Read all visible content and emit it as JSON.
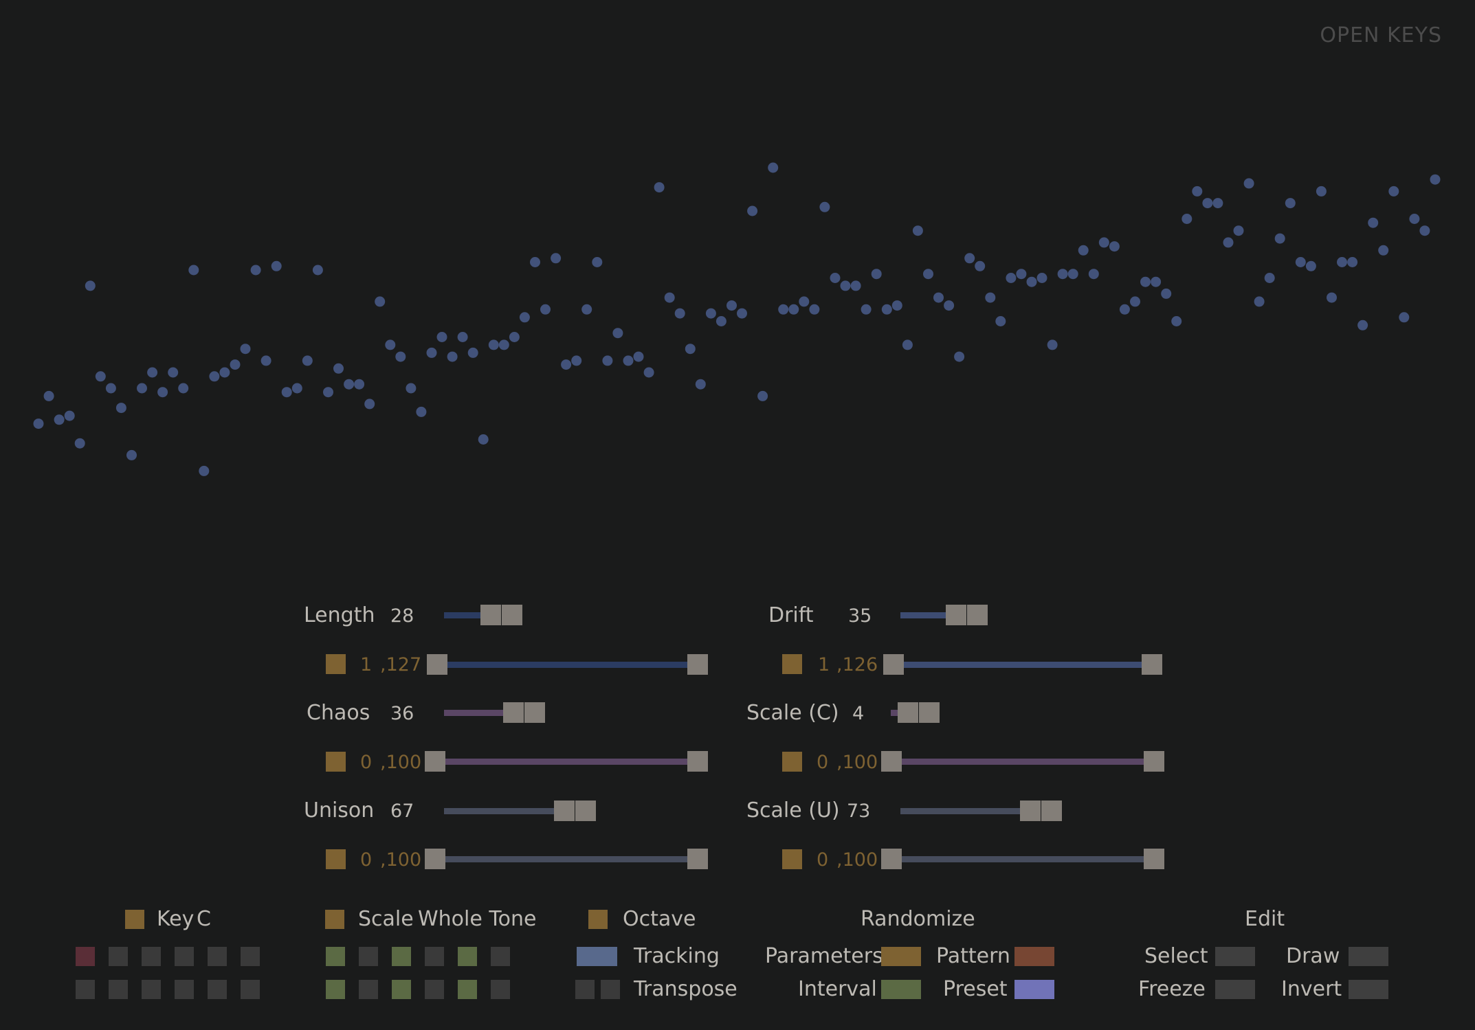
{
  "brand": "OPEN KEYS",
  "colors": {
    "background": "#1a1b1b",
    "dot": "#42527a",
    "accent": "#7e6232",
    "thumb": "#837e78",
    "length_bar": "#2b3c62",
    "drift_bar": "#3d4c72",
    "chaos_bar": "#5a4665",
    "unison_bar": "#464c5c"
  },
  "sequence": {
    "values": [
      32,
      39,
      33,
      34,
      27,
      67,
      44,
      41,
      36,
      24,
      41,
      45,
      40,
      45,
      41,
      71,
      20,
      44,
      45,
      47,
      51,
      71,
      48,
      72,
      40,
      41,
      48,
      71,
      40,
      46,
      42,
      42,
      37,
      63,
      52,
      49,
      41,
      35,
      50,
      54,
      49,
      54,
      50,
      28,
      52,
      52,
      54,
      59,
      73,
      61,
      74,
      47,
      48,
      61,
      73,
      48,
      55,
      48,
      49,
      45,
      92,
      64,
      60,
      51,
      42,
      60,
      58,
      62,
      60,
      86,
      39,
      97,
      61,
      61,
      63,
      61,
      87,
      69,
      67,
      67,
      61,
      70,
      61,
      62,
      52,
      81,
      70,
      64,
      62,
      49,
      74,
      72,
      64,
      58,
      69,
      70,
      68,
      69,
      52,
      70,
      70,
      76,
      70,
      78,
      77,
      61,
      63,
      68,
      68,
      65,
      58,
      84,
      91,
      88,
      88,
      78,
      81,
      93,
      63,
      69,
      79,
      88,
      73,
      72,
      91,
      64,
      73,
      73,
      57,
      83,
      76,
      91,
      59,
      84,
      81,
      94
    ],
    "ymin": 0,
    "ymax": 127
  },
  "params": {
    "length": {
      "label": "Length",
      "value": "28",
      "value_num": 28,
      "max": 127,
      "range_min": "1",
      "range_max": ",127",
      "range_min_num": 1,
      "range_max_num": 127
    },
    "drift": {
      "label": "Drift",
      "value": "35",
      "value_num": 35,
      "max": 127,
      "range_min": "1",
      "range_max": ",126",
      "range_min_num": 1,
      "range_max_num": 126
    },
    "chaos": {
      "label": "Chaos",
      "value": "36",
      "value_num": 36,
      "max": 100,
      "range_min": "0",
      "range_max": ",100",
      "range_min_num": 0,
      "range_max_num": 100
    },
    "scale_c": {
      "label": "Scale (C)",
      "value": "4",
      "value_num": 4,
      "max": 100,
      "range_min": "0",
      "range_max": ",100",
      "range_min_num": 0,
      "range_max_num": 100
    },
    "unison": {
      "label": "Unison",
      "value": "67",
      "value_num": 67,
      "max": 100,
      "range_min": "0",
      "range_max": ",100",
      "range_min_num": 0,
      "range_max_num": 100
    },
    "scale_u": {
      "label": "Scale (U)",
      "value": "73",
      "value_num": 73,
      "max": 100,
      "range_min": "0",
      "range_max": ",100",
      "range_min_num": 0,
      "range_max_num": 100
    }
  },
  "bottom": {
    "key": {
      "label": "Key",
      "value": "C"
    },
    "scale": {
      "label": "Scale",
      "value": "Whole Tone"
    },
    "octave": {
      "label": "Octave"
    },
    "randomize": {
      "label": "Randomize"
    },
    "edit": {
      "label": "Edit"
    },
    "tracking": "Tracking",
    "transpose": "Transpose",
    "parameters": "Parameters",
    "interval": "Interval",
    "pattern": "Pattern",
    "preset": "Preset",
    "select": "Select",
    "freeze": "Freeze",
    "draw": "Draw",
    "invert": "Invert",
    "key_grid": [
      [
        "#5a2e37",
        "#3a3a3a",
        "#3a3a3a",
        "#3a3a3a",
        "#3a3a3a",
        "#3a3a3a"
      ],
      [
        "#3a3a3a",
        "#3a3a3a",
        "#3a3a3a",
        "#3a3a3a",
        "#3a3a3a",
        "#3a3a3a"
      ]
    ],
    "scale_grid": [
      [
        "#5b6a44",
        "#3a3a3a",
        "#5b6a44",
        "#3a3a3a",
        "#5b6a44",
        "#3a3a3a"
      ],
      [
        "#5b6a44",
        "#3a3a3a",
        "#5b6a44",
        "#3a3a3a",
        "#5b6a44",
        "#3a3a3a"
      ]
    ],
    "tracking_color": "#58698c",
    "transpose_colors": [
      "#3a3a3a",
      "#3a3a3a"
    ],
    "parameters_color": "#7e6232",
    "pattern_color": "#774633",
    "interval_color": "#5b6a44",
    "preset_color": "#7173b8",
    "select_color": "#3f3f3f",
    "draw_color": "#3f3f3f",
    "freeze_color": "#3f3f3f",
    "invert_color": "#3f3f3f"
  }
}
